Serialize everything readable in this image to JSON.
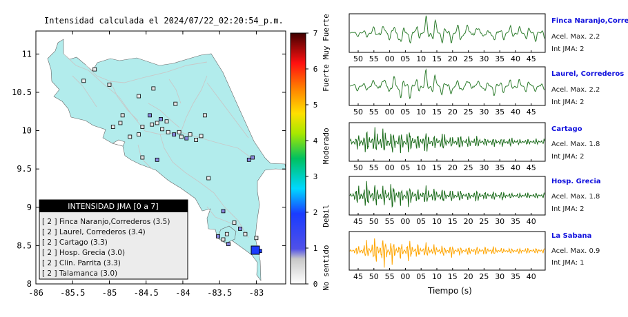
{
  "title": "Intensidad calculada el 2024/07/22_02:20:54_p.m.",
  "map": {
    "xticks": [
      "-86",
      "-85.5",
      "-85",
      "-84.5",
      "-84",
      "-83.5",
      "-83"
    ],
    "yticks": [
      "11",
      "10.5",
      "10",
      "9.5",
      "9",
      "8.5",
      "8"
    ],
    "xlim": [
      -86,
      -82.6
    ],
    "ylim": [
      8,
      11.3
    ],
    "legend_title": "INTENSIDAD JMA [0 a 7]",
    "legend_items": [
      "[ 2 ]  Finca Naranjo,Correderos (3.5)",
      "[ 2 ]  Laurel, Correderos (3.4)",
      "[ 2 ]  Cartago (3.3)",
      "[ 2 ]  Hosp. Grecia (3.0)",
      "[ 2 ]  Clin. Parrita (3.3)",
      "[ 2 ]  Talamanca (3.0)"
    ],
    "colors": {
      "land": "#b2ecec",
      "sea": "#ffffff",
      "roads": "#c8c8c8",
      "station_low": "#e8e8e8",
      "station_mid": "#8888dd",
      "station_high": "#1a3cff"
    }
  },
  "colorbar": {
    "ticks": [
      "0",
      "1",
      "2",
      "3",
      "4",
      "5",
      "6",
      "7"
    ],
    "labels": [
      "No sentido",
      "Debil",
      "Moderado",
      "Fuerte",
      "Muy Fuerte"
    ]
  },
  "stations": [
    {
      "name": "Finca Naranjo,Correderos",
      "acel": "Acel. Max. 2.2",
      "int": "Int JMA: 2",
      "color": "#2e7d2e",
      "xticks": [
        "50",
        "55",
        "00",
        "05",
        "10",
        "15",
        "20",
        "25",
        "30",
        "35",
        "40",
        "45"
      ]
    },
    {
      "name": "Laurel, Correderos",
      "acel": "Acel. Max. 2.2",
      "int": "Int JMA: 2",
      "color": "#2e7d2e",
      "xticks": [
        "50",
        "55",
        "00",
        "05",
        "10",
        "15",
        "20",
        "25",
        "30",
        "35",
        "40",
        "45"
      ]
    },
    {
      "name": "Cartago",
      "acel": "Acel. Max. 1.8",
      "int": "Int JMA: 2",
      "color": "#1a6b1a",
      "xticks": [
        "50",
        "55",
        "00",
        "05",
        "10",
        "15",
        "20",
        "25",
        "30",
        "35",
        "40",
        "45"
      ]
    },
    {
      "name": "Hosp. Grecia",
      "acel": "Acel. Max. 1.8",
      "int": "Int JMA: 2",
      "color": "#1a6b1a",
      "xticks": [
        "45",
        "50",
        "55",
        "00",
        "05",
        "10",
        "15",
        "20",
        "25",
        "30",
        "35",
        "40"
      ]
    },
    {
      "name": "La Sabana",
      "acel": "Acel. Max. 0.9",
      "int": "Int JMA: 1",
      "color": "#ffa500",
      "xticks": [
        "45",
        "50",
        "55",
        "00",
        "05",
        "10",
        "15",
        "20",
        "25",
        "30",
        "35",
        "40"
      ]
    }
  ],
  "xlabel": "Tiempo (s)",
  "chart_data": [
    {
      "type": "scatter",
      "title": "Intensidad calculada el 2024/07/22_02:20:54_p.m.",
      "xlim": [
        -86,
        -82.6
      ],
      "ylim": [
        8,
        11.3
      ],
      "points": [
        {
          "lon": -84.55,
          "lat": 10.05,
          "int": 1
        },
        {
          "lon": -84.42,
          "lat": 10.08,
          "int": 1
        },
        {
          "lon": -84.35,
          "lat": 10.1,
          "int": 1
        },
        {
          "lon": -84.28,
          "lat": 10.02,
          "int": 1
        },
        {
          "lon": -84.2,
          "lat": 9.98,
          "int": 1
        },
        {
          "lon": -84.12,
          "lat": 9.95,
          "int": 2
        },
        {
          "lon": -84.05,
          "lat": 9.98,
          "int": 1
        },
        {
          "lon": -84.02,
          "lat": 9.92,
          "int": 1
        },
        {
          "lon": -83.95,
          "lat": 9.9,
          "int": 2
        },
        {
          "lon": -83.9,
          "lat": 9.95,
          "int": 1
        },
        {
          "lon": -83.82,
          "lat": 9.88,
          "int": 1
        },
        {
          "lon": -84.3,
          "lat": 10.15,
          "int": 2
        },
        {
          "lon": -84.22,
          "lat": 10.12,
          "int": 1
        },
        {
          "lon": -84.45,
          "lat": 10.2,
          "int": 2
        },
        {
          "lon": -84.6,
          "lat": 9.95,
          "int": 1
        },
        {
          "lon": -84.72,
          "lat": 9.92,
          "int": 1
        },
        {
          "lon": -84.85,
          "lat": 10.1,
          "int": 1
        },
        {
          "lon": -84.95,
          "lat": 10.05,
          "int": 1
        },
        {
          "lon": -84.82,
          "lat": 10.2,
          "int": 1
        },
        {
          "lon": -84.1,
          "lat": 10.35,
          "int": 1
        },
        {
          "lon": -84.4,
          "lat": 10.55,
          "int": 1
        },
        {
          "lon": -84.6,
          "lat": 10.45,
          "int": 1
        },
        {
          "lon": -85.2,
          "lat": 10.8,
          "int": 1
        },
        {
          "lon": -85.35,
          "lat": 10.65,
          "int": 1
        },
        {
          "lon": -85.0,
          "lat": 10.6,
          "int": 1
        },
        {
          "lon": -83.7,
          "lat": 10.2,
          "int": 1
        },
        {
          "lon": -83.75,
          "lat": 9.93,
          "int": 1
        },
        {
          "lon": -84.35,
          "lat": 9.62,
          "int": 2
        },
        {
          "lon": -84.55,
          "lat": 9.65,
          "int": 1
        },
        {
          "lon": -83.65,
          "lat": 9.38,
          "int": 1
        },
        {
          "lon": -83.1,
          "lat": 9.62,
          "int": 2
        },
        {
          "lon": -83.05,
          "lat": 9.65,
          "int": 2
        },
        {
          "lon": -83.45,
          "lat": 8.95,
          "int": 2
        },
        {
          "lon": -83.3,
          "lat": 8.8,
          "int": 1
        },
        {
          "lon": -83.22,
          "lat": 8.72,
          "int": 2
        },
        {
          "lon": -83.15,
          "lat": 8.65,
          "int": 1
        },
        {
          "lon": -83.4,
          "lat": 8.65,
          "int": 1
        },
        {
          "lon": -83.45,
          "lat": 8.58,
          "int": 1
        },
        {
          "lon": -83.0,
          "lat": 8.6,
          "int": 1
        },
        {
          "lon": -83.38,
          "lat": 8.52,
          "int": 2
        },
        {
          "lon": -83.52,
          "lat": 8.62,
          "int": 2
        },
        {
          "lon": -82.95,
          "lat": 8.43,
          "int": 3
        }
      ]
    },
    {
      "type": "line",
      "x_unit": "s",
      "series": [
        {
          "name": "Finca Naranjo,Correderos",
          "values": [
            0,
            0.2,
            -0.3,
            0.5,
            -0.6,
            0.9,
            -1,
            0.8,
            -0.7,
            1,
            -0.9,
            0.7,
            -0.6,
            0.8,
            -0.7,
            0.6,
            -0.5,
            0.6,
            -0.6,
            0.5,
            -0.4,
            0.5,
            -0.5,
            0.4
          ]
        },
        {
          "name": "Laurel, Correderos",
          "values": [
            0,
            0.3,
            -0.4,
            0.6,
            -0.7,
            1,
            -0.9,
            0.8,
            -0.6,
            0.9,
            -0.8,
            0.7,
            -0.6,
            0.7,
            -0.6,
            0.5,
            -0.5,
            0.6,
            -0.5,
            0.4,
            -0.4,
            0.5,
            -0.4,
            0.4
          ]
        },
        {
          "name": "Cartago",
          "values": [
            0.3,
            -0.5,
            0.8,
            -0.9,
            0.9,
            -0.8,
            0.7,
            -0.8,
            0.6,
            -0.7,
            0.5,
            -0.6,
            0.4,
            -0.5,
            0.4,
            -0.4,
            0.3,
            -0.3,
            0.3,
            -0.3,
            0.2,
            -0.2,
            0.2,
            -0.2
          ]
        },
        {
          "name": "Hosp. Grecia",
          "values": [
            0.2,
            -0.6,
            0.9,
            -0.8,
            0.7,
            -0.9,
            0.6,
            -0.7,
            0.5,
            -0.6,
            0.5,
            -0.5,
            0.4,
            -0.4,
            0.3,
            -0.4,
            0.3,
            -0.3,
            0.3,
            -0.2,
            0.2,
            -0.2,
            0.2,
            -0.2
          ]
        },
        {
          "name": "La Sabana",
          "values": [
            0.1,
            -0.3,
            0.6,
            -0.9,
            1,
            -0.8,
            0.6,
            -0.7,
            0.5,
            -0.5,
            0.4,
            -0.4,
            0.4,
            -0.3,
            0.3,
            -0.3,
            0.3,
            -0.3,
            0.2,
            -0.2,
            0.2,
            -0.2,
            0.2,
            -0.2
          ]
        }
      ]
    }
  ]
}
